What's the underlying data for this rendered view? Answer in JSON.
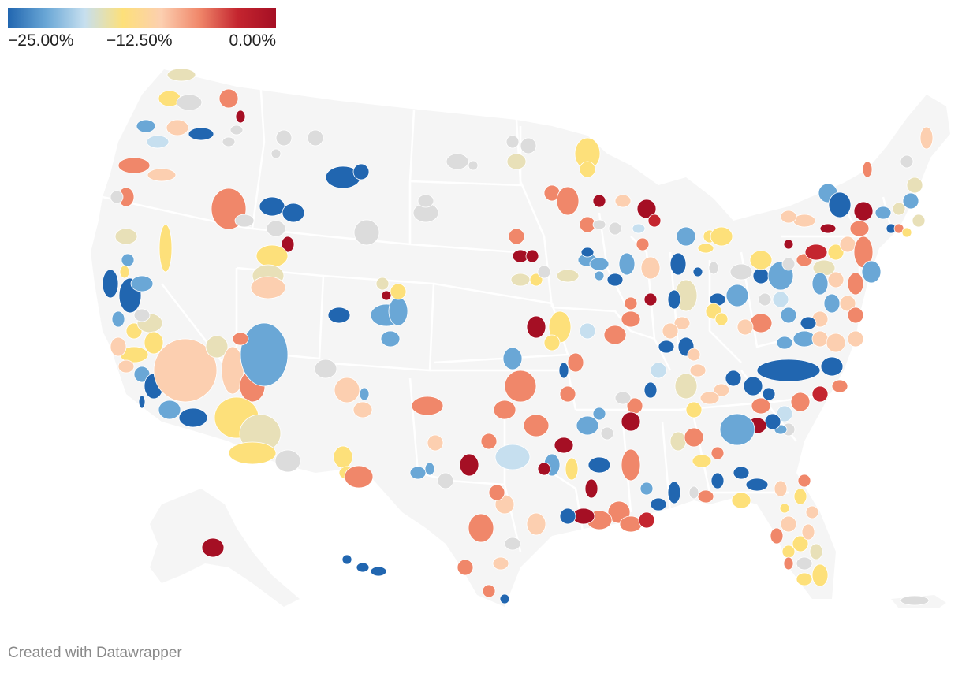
{
  "legend": {
    "min_label": "−25.00%",
    "mid_label": "−12.50%",
    "max_label": "0.00%",
    "stops": [
      "#2166b0",
      "#6aa7d6",
      "#c6dfef",
      "#fde07a",
      "#fccfb0",
      "#f0876a",
      "#c4252f",
      "#a50f24"
    ]
  },
  "colors": {
    "land": "#f5f5f5",
    "state_border": "#ffffff",
    "no_data": "#dcdcdc"
  },
  "credit": "Created with Datawrapper",
  "chart_data": {
    "type": "choropleth",
    "value_range": [
      -25,
      0
    ],
    "value_unit": "%",
    "regions_with_data_colored": true
  }
}
